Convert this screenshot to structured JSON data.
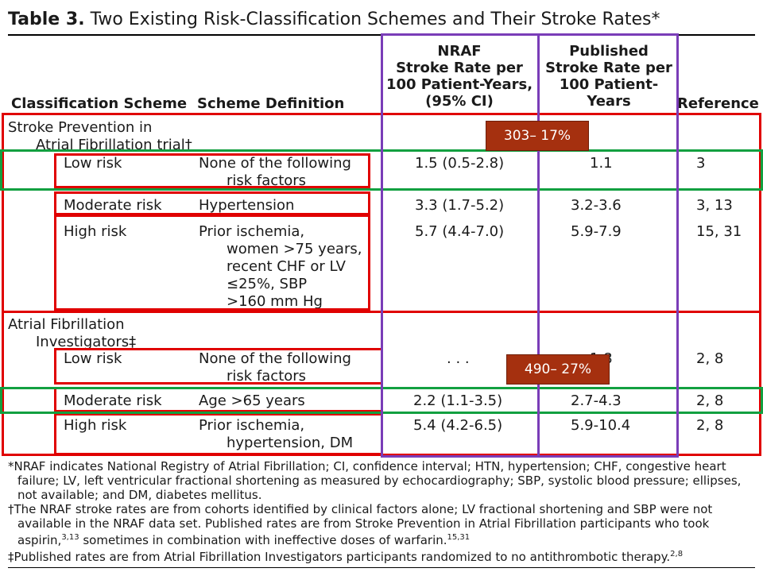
{
  "title": {
    "label": "Table 3.",
    "text": "Two Existing Risk-Classification Schemes and Their Stroke Rates*"
  },
  "headers": {
    "scheme": "Classification Scheme",
    "definition": "Scheme Definition",
    "nraf": [
      "NRAF",
      "Stroke Rate per",
      "100 Patient-Years,",
      "(95% CI)"
    ],
    "published": [
      "Published",
      "Stroke Rate per",
      "100 Patient-",
      "Years"
    ],
    "reference": "Reference"
  },
  "groups": [
    {
      "name": [
        "Stroke Prevention in",
        "Atrial Fibrillation trial†"
      ],
      "rows": [
        {
          "risk": "Low risk",
          "definition": [
            "None of the following",
            "risk factors"
          ],
          "nraf": "1.5 (0.5-2.8)",
          "published": "1.1",
          "reference": "3"
        },
        {
          "risk": "Moderate risk",
          "definition": [
            "Hypertension"
          ],
          "nraf": "3.3 (1.7-5.2)",
          "published": "3.2-3.6",
          "reference": "3, 13"
        },
        {
          "risk": "High risk",
          "definition": [
            "Prior ischemia,",
            "women >75 years,",
            "recent CHF or LV",
            "≤25%, SBP",
            ">160 mm Hg"
          ],
          "nraf": "5.7 (4.4-7.0)",
          "published": "5.9-7.9",
          "reference": "15, 31"
        }
      ]
    },
    {
      "name": [
        "Atrial Fibrillation",
        "Investigators‡"
      ],
      "rows": [
        {
          "risk": "Low risk",
          "definition": [
            "None of the following",
            "risk factors"
          ],
          "nraf": ". . .",
          "published": "1.8",
          "reference": "2, 8"
        },
        {
          "risk": "Moderate risk",
          "definition": [
            "Age >65 years"
          ],
          "nraf": "2.2 (1.1-3.5)",
          "published": "2.7-4.3",
          "reference": "2, 8"
        },
        {
          "risk": "High risk",
          "definition": [
            "Prior ischemia,",
            "hypertension, DM"
          ],
          "nraf": "5.4 (4.2-6.5)",
          "published": "5.9-10.4",
          "reference": "2, 8"
        }
      ]
    }
  ],
  "badges": {
    "first": "303– 17%",
    "second": "490– 27%"
  },
  "footnotes": [
    "*NRAF indicates National Registry of Atrial Fibrillation; CI, confidence interval; HTN, hypertension; CHF, congestive heart failure; LV, left ventricular fractional shortening as measured by echocardiography; SBP, systolic blood pressure; ellipses, not available; and DM, diabetes mellitus.",
    "†The NRAF stroke rates are from cohorts identified by clinical factors alone; LV fractional shortening and SBP were not available in the NRAF data set. Published rates are from Stroke Prevention in Atrial Fibrillation participants who took aspirin,",
    "3,13",
    " sometimes in combination with ineffective doses of warfarin.",
    "15,31",
    "‡Published rates are from Atrial Fibrillation Investigators participants randomized to no antithrombotic therapy.",
    "2,8"
  ],
  "colors": {
    "red_box": "#e00000",
    "green_box": "#12a040",
    "purple_box": "#7a3db8",
    "badge_bg": "#a5300f"
  }
}
